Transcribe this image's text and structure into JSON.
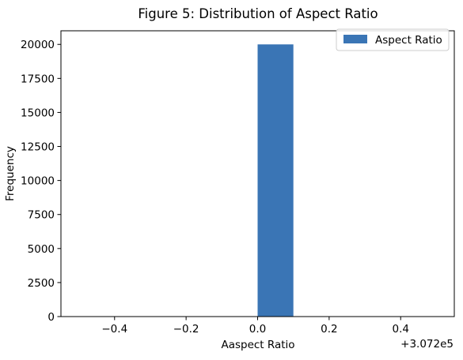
{
  "chart_data": {
    "type": "bar",
    "title": "Figure 5: Distribution of Aspect Ratio",
    "xlabel": "Aaspect Ratio",
    "ylabel": "Frequency",
    "x_offset_text": "+3.072e5",
    "xlim": [
      -0.55,
      0.55
    ],
    "ylim": [
      0,
      21000
    ],
    "x_ticks": [
      -0.4,
      -0.2,
      0.0,
      0.2,
      0.4
    ],
    "x_tick_labels": [
      "−0.4",
      "−0.2",
      "0.0",
      "0.2",
      "0.4"
    ],
    "y_ticks": [
      0,
      2500,
      5000,
      7500,
      10000,
      12500,
      15000,
      17500,
      20000
    ],
    "y_tick_labels": [
      "0",
      "2500",
      "5000",
      "7500",
      "10000",
      "12500",
      "15000",
      "17500",
      "20000"
    ],
    "series": [
      {
        "name": "Aspect Ratio",
        "color": "#3a75b5",
        "bins": [
          {
            "x0": 0.0,
            "x1": 0.1,
            "count": 20000
          }
        ]
      }
    ],
    "legend": {
      "position": "top-right"
    },
    "grid": false
  }
}
